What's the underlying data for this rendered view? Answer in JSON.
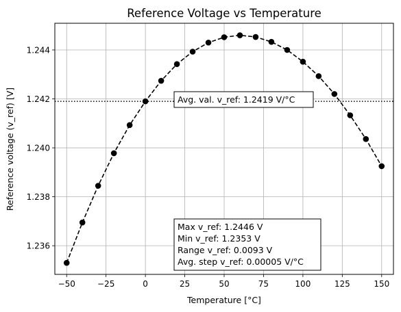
{
  "chart_data": {
    "type": "line",
    "title": "Reference Voltage vs Temperature",
    "xlabel": "Temperature [°C]",
    "ylabel": "Reference voltage (v_ref) [V]",
    "xlim": [
      -57.5,
      157.5
    ],
    "ylim": [
      1.23483,
      1.24509
    ],
    "xticks": [
      -50,
      -25,
      0,
      25,
      50,
      75,
      100,
      125,
      150
    ],
    "xtick_labels": [
      "−50",
      "−25",
      "0",
      "25",
      "50",
      "75",
      "100",
      "125",
      "150"
    ],
    "yticks": [
      1.236,
      1.238,
      1.24,
      1.242,
      1.244
    ],
    "ytick_labels": [
      "1.236",
      "1.238",
      "1.240",
      "1.242",
      "1.244"
    ],
    "grid": true,
    "series": [
      {
        "style": "dashed line with circle markers",
        "color": "#000000",
        "x": [
          -50,
          -40,
          -30,
          -20,
          -10,
          0,
          10,
          20,
          30,
          40,
          50,
          60,
          70,
          80,
          90,
          100,
          110,
          120,
          130,
          140,
          150
        ],
        "y": [
          1.2353,
          1.23695,
          1.23845,
          1.23978,
          1.24093,
          1.2419,
          1.24274,
          1.24342,
          1.24393,
          1.2443,
          1.24452,
          1.2446,
          1.24453,
          1.24433,
          1.244,
          1.24352,
          1.24293,
          1.2422,
          1.24133,
          1.24036,
          1.23925
        ]
      }
    ],
    "hline": {
      "y": 1.2419,
      "style": "dotted",
      "color": "#000000"
    },
    "annotations": [
      {
        "text": "Avg. val. v_ref: 1.2419 V/°C"
      },
      {
        "lines": [
          "Max v_ref: 1.2446 V",
          "Min v_ref: 1.2353 V",
          "Range v_ref: 0.0093 V",
          "Avg. step v_ref: 0.00005 V/°C"
        ]
      }
    ]
  }
}
